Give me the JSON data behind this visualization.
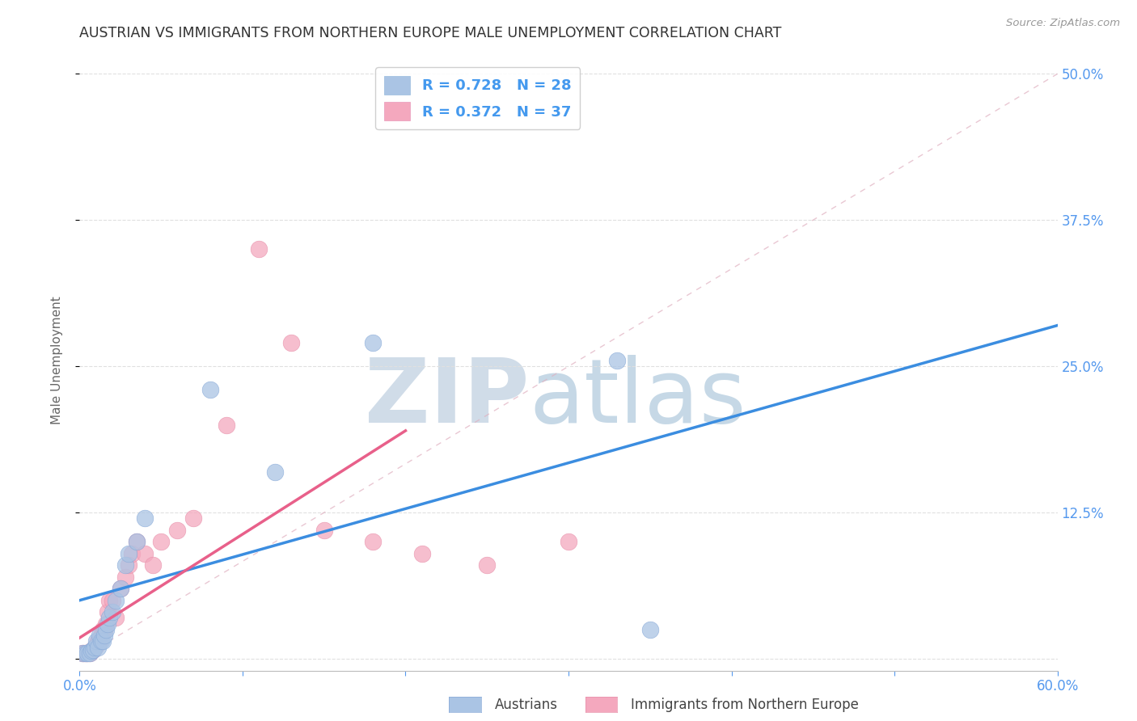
{
  "title": "AUSTRIAN VS IMMIGRANTS FROM NORTHERN EUROPE MALE UNEMPLOYMENT CORRELATION CHART",
  "source": "Source: ZipAtlas.com",
  "ylabel": "Male Unemployment",
  "xlim": [
    0.0,
    0.6
  ],
  "ylim": [
    -0.01,
    0.52
  ],
  "background_color": "#ffffff",
  "grid_color": "#e0e0e0",
  "austrians_color": "#aac4e4",
  "immigrants_color": "#f4a8be",
  "austrians_line_color": "#3b8de0",
  "immigrants_line_color": "#e8608a",
  "diagonal_color": "#d0d0d0",
  "legend_R_color": "#4499ee",
  "austrians_R": 0.728,
  "austrians_N": 28,
  "immigrants_R": 0.372,
  "immigrants_N": 37,
  "austrians_scatter_x": [
    0.002,
    0.004,
    0.005,
    0.006,
    0.007,
    0.008,
    0.009,
    0.01,
    0.011,
    0.012,
    0.013,
    0.014,
    0.015,
    0.016,
    0.017,
    0.018,
    0.02,
    0.022,
    0.025,
    0.028,
    0.03,
    0.035,
    0.04,
    0.08,
    0.12,
    0.18,
    0.33,
    0.35
  ],
  "austrians_scatter_y": [
    0.005,
    0.005,
    0.005,
    0.005,
    0.007,
    0.008,
    0.01,
    0.015,
    0.01,
    0.02,
    0.015,
    0.015,
    0.02,
    0.025,
    0.03,
    0.035,
    0.04,
    0.05,
    0.06,
    0.08,
    0.09,
    0.1,
    0.12,
    0.23,
    0.16,
    0.27,
    0.255,
    0.025
  ],
  "immigrants_scatter_x": [
    0.002,
    0.003,
    0.004,
    0.005,
    0.006,
    0.007,
    0.008,
    0.009,
    0.01,
    0.011,
    0.012,
    0.013,
    0.014,
    0.015,
    0.016,
    0.017,
    0.018,
    0.02,
    0.022,
    0.025,
    0.028,
    0.03,
    0.032,
    0.035,
    0.04,
    0.045,
    0.05,
    0.06,
    0.07,
    0.09,
    0.11,
    0.13,
    0.15,
    0.18,
    0.21,
    0.25,
    0.3
  ],
  "immigrants_scatter_y": [
    0.005,
    0.005,
    0.005,
    0.005,
    0.005,
    0.007,
    0.008,
    0.01,
    0.012,
    0.015,
    0.015,
    0.02,
    0.025,
    0.025,
    0.03,
    0.04,
    0.05,
    0.05,
    0.035,
    0.06,
    0.07,
    0.08,
    0.09,
    0.1,
    0.09,
    0.08,
    0.1,
    0.11,
    0.12,
    0.2,
    0.35,
    0.27,
    0.11,
    0.1,
    0.09,
    0.08,
    0.1
  ],
  "austrians_line_x0": 0.0,
  "austrians_line_y0": 0.05,
  "austrians_line_x1": 0.6,
  "austrians_line_y1": 0.285,
  "immigrants_line_x0": 0.0,
  "immigrants_line_y0": 0.018,
  "immigrants_line_x1": 0.2,
  "immigrants_line_y1": 0.195
}
